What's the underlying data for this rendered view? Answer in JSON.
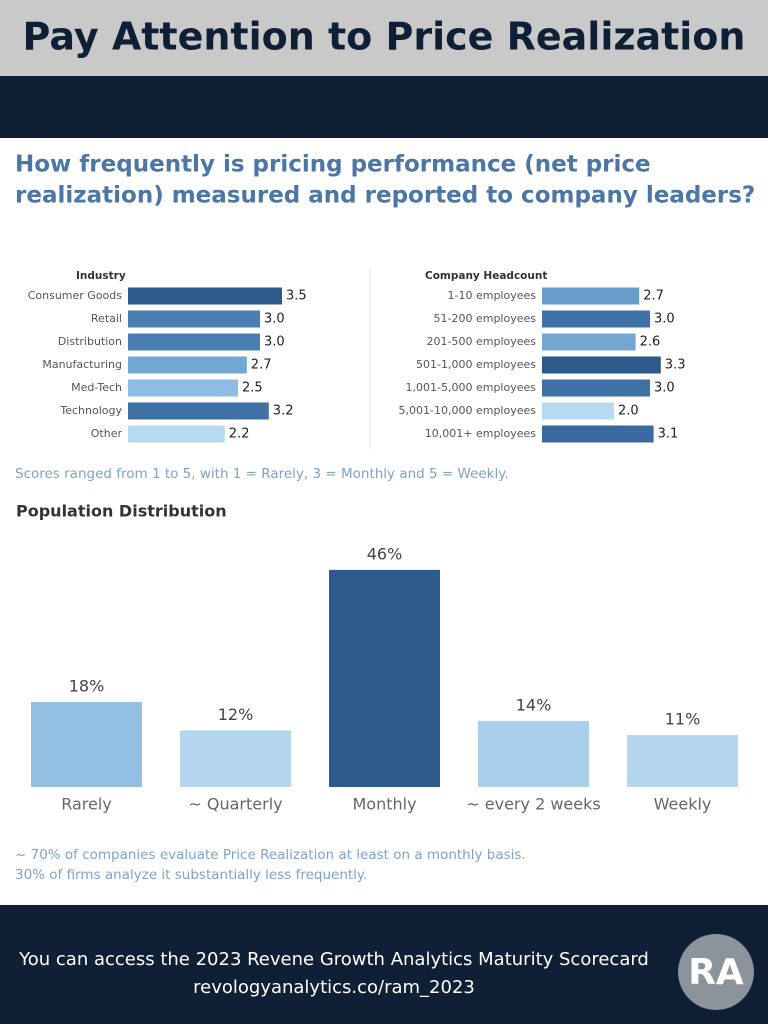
{
  "header": {
    "title": "Pay Attention to Price Realization"
  },
  "question": [
    "How frequently is pricing performance (net price",
    "realization) measured and reported to company leaders?"
  ],
  "chart_data": [
    {
      "type": "bar",
      "orientation": "horizontal",
      "title": "Industry",
      "categories": [
        "Consumer Goods",
        "Retail",
        "Distribution",
        "Manufacturing",
        "Med-Tech",
        "Technology",
        "Other"
      ],
      "values": [
        3.5,
        3.0,
        3.0,
        2.7,
        2.5,
        3.2,
        2.2
      ],
      "value_labels": [
        "3.5",
        "3.0",
        "3.0",
        "2.7",
        "2.5",
        "3.2",
        "2.2"
      ],
      "colors": [
        "#2d5a8a",
        "#4a7db0",
        "#4a7db0",
        "#74a6d2",
        "#8dbde2",
        "#3f70a6",
        "#b8daf1"
      ]
    },
    {
      "type": "bar",
      "orientation": "horizontal",
      "title": "Company Headcount",
      "categories": [
        "1-10 employees",
        "51-200 employees",
        "201-500 employees",
        "501-1,000 employees",
        "1,001-5,000 employees",
        "5,001-10,000 employees",
        "10,001+ employees"
      ],
      "values": [
        2.7,
        3.0,
        2.6,
        3.3,
        3.0,
        2.0,
        3.1
      ],
      "value_labels": [
        "2.7",
        "3.0",
        "2.6",
        "3.3",
        "3.0",
        "2.0",
        "3.1"
      ],
      "colors": [
        "#6a9dcc",
        "#3f70a6",
        "#74a6d2",
        "#2d5a8a",
        "#3f70a6",
        "#b8daf1",
        "#3a69a0"
      ]
    },
    {
      "type": "bar",
      "orientation": "vertical",
      "title": "Population Distribution",
      "categories": [
        "Rarely",
        "~ Quarterly",
        "Monthly",
        "~ every 2 weeks",
        "Weekly"
      ],
      "values": [
        18,
        12,
        46,
        14,
        11
      ],
      "value_labels": [
        "18%",
        "12%",
        "46%",
        "14%",
        "11%"
      ],
      "colors": [
        "#94c1e3",
        "#b4d7ef",
        "#2d5a88",
        "#a9cfeb",
        "#b4d7ef"
      ],
      "ylim": [
        0,
        50
      ]
    }
  ],
  "scale_note": "Scores ranged from 1 to 5, with 1 = Rarely, 3 = Monthly and 5 = Weekly.",
  "notes": [
    "~ 70% of companies evaluate Price Realization at least on a monthly basis.",
    "30% of firms analyze it substantially less frequently."
  ],
  "footer": {
    "lines": [
      "You can access the 2023 Revene Growth Analytics Maturity Scorecard",
      "revologyanalytics.co/ram_2023"
    ],
    "logo": "RA"
  }
}
